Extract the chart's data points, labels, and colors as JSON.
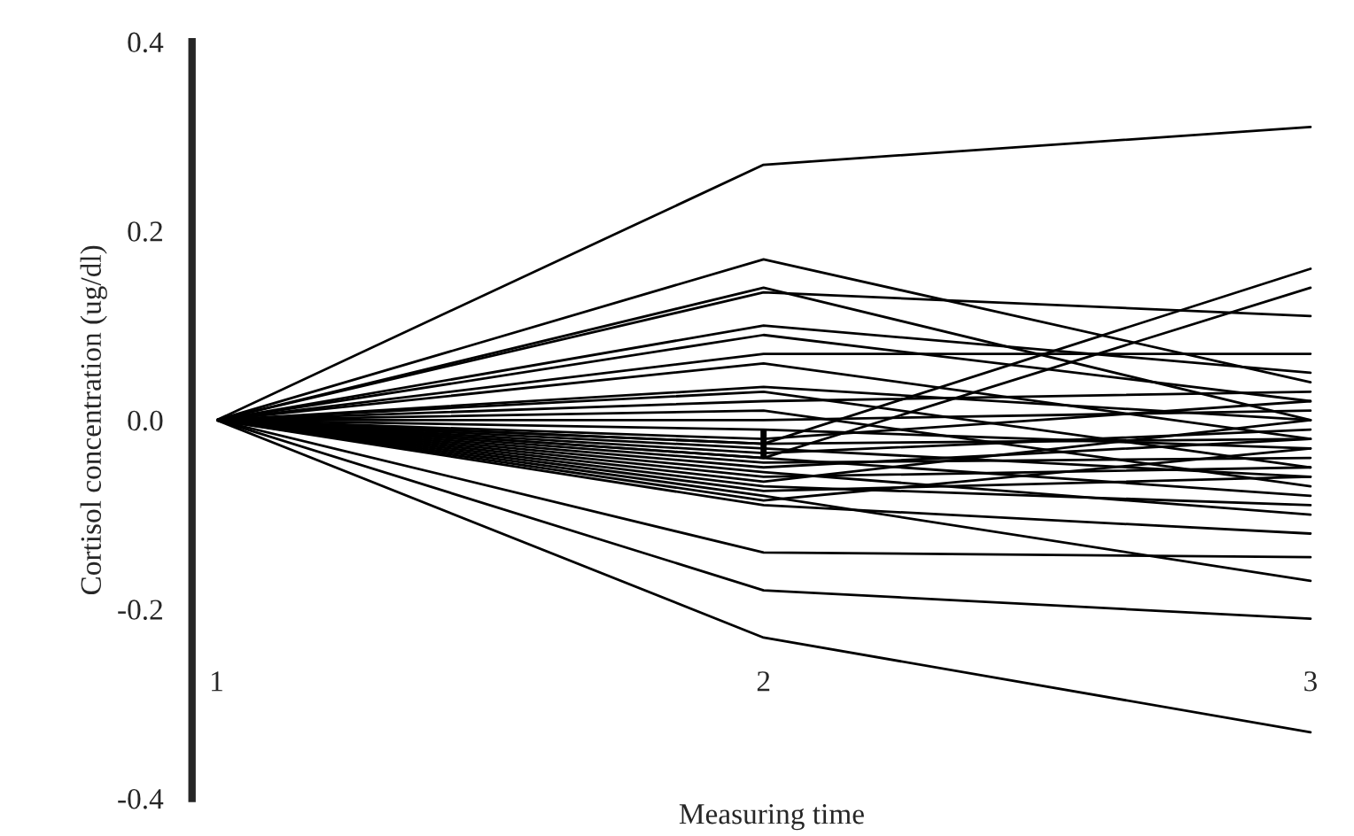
{
  "chart_data": {
    "type": "line",
    "xlabel": "Measuring time",
    "ylabel": "Cortisol concentration (ug/dl)",
    "categories": [
      "1",
      "2",
      "3"
    ],
    "ylim": [
      -0.4,
      0.4
    ],
    "yticks": [
      {
        "value": -0.4,
        "label": "-0.4"
      },
      {
        "value": -0.2,
        "label": "-0.2"
      },
      {
        "value": 0,
        "label": "0.0"
      },
      0.2,
      0.4
    ],
    "marker": "none",
    "line_style": "solid",
    "series": [
      {
        "color": "#000000",
        "values": [
          0,
          0.27,
          0.31
        ]
      },
      {
        "color": "#000000",
        "values": [
          0,
          0.17,
          0.04
        ]
      },
      {
        "color": "#000000",
        "values": [
          0,
          0.14,
          0.0
        ]
      },
      {
        "color": "#000000",
        "values": [
          0,
          0.135,
          0.11
        ]
      },
      {
        "color": "#000000",
        "values": [
          0,
          0.1,
          0.05
        ]
      },
      {
        "color": "#000000",
        "values": [
          0,
          0.09,
          0.02
        ]
      },
      {
        "color": "#000000",
        "values": [
          0,
          0.07,
          0.07
        ]
      },
      {
        "color": "#000000",
        "values": [
          0,
          0.06,
          -0.02
        ]
      },
      {
        "color": "#000000",
        "values": [
          0,
          0.035,
          0.0
        ]
      },
      {
        "color": "#000000",
        "values": [
          0,
          0.03,
          -0.05
        ]
      },
      {
        "color": "#000000",
        "values": [
          0,
          0.02,
          0.03
        ]
      },
      {
        "color": "#000000",
        "values": [
          0,
          0.01,
          -0.07
        ]
      },
      {
        "color": "#000000",
        "values": [
          0,
          0.0,
          0.01
        ]
      },
      {
        "color": "#000000",
        "values": [
          0,
          -0.01,
          -0.03
        ]
      },
      {
        "color": "#000000",
        "values": [
          0,
          -0.02,
          0.02
        ]
      },
      {
        "color": "#000000",
        "values": [
          0,
          -0.025,
          0.16
        ]
      },
      {
        "color": "#000000",
        "values": [
          0,
          -0.04,
          0.14
        ]
      },
      {
        "color": "#000000",
        "values": [
          0,
          -0.03,
          -0.06
        ]
      },
      {
        "color": "#000000",
        "values": [
          0,
          -0.035,
          -0.01
        ]
      },
      {
        "color": "#000000",
        "values": [
          0,
          -0.04,
          -0.08
        ]
      },
      {
        "color": "#000000",
        "values": [
          0,
          -0.045,
          -0.04
        ]
      },
      {
        "color": "#000000",
        "values": [
          0,
          -0.05,
          -0.02
        ]
      },
      {
        "color": "#000000",
        "values": [
          0,
          -0.055,
          -0.1
        ]
      },
      {
        "color": "#000000",
        "values": [
          0,
          -0.06,
          -0.05
        ]
      },
      {
        "color": "#000000",
        "values": [
          0,
          -0.065,
          0.0
        ]
      },
      {
        "color": "#000000",
        "values": [
          0,
          -0.07,
          -0.09
        ]
      },
      {
        "color": "#000000",
        "values": [
          0,
          -0.075,
          -0.06
        ]
      },
      {
        "color": "#000000",
        "values": [
          0,
          -0.08,
          -0.17
        ]
      },
      {
        "color": "#000000",
        "values": [
          0,
          -0.085,
          -0.03
        ]
      },
      {
        "color": "#000000",
        "values": [
          0,
          -0.09,
          -0.12
        ]
      },
      {
        "color": "#000000",
        "values": [
          0,
          -0.14,
          -0.145
        ]
      },
      {
        "color": "#000000",
        "values": [
          0,
          -0.18,
          -0.21
        ]
      },
      {
        "color": "#000000",
        "values": [
          0,
          -0.23,
          -0.33
        ]
      },
      {
        "color": "#000000",
        "values": [
          0,
          -0.025,
          -0.02
        ],
        "errors": [
          null,
          0.015,
          null
        ]
      }
    ]
  }
}
